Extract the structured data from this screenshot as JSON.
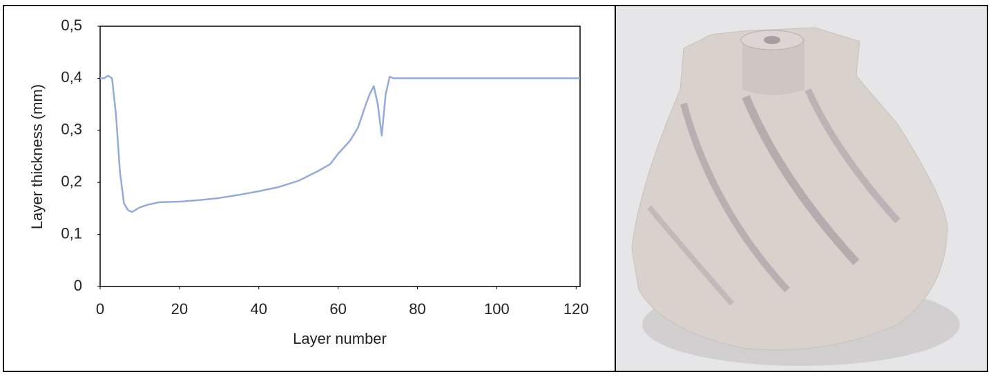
{
  "chart_data": {
    "type": "line",
    "x_label": "Layer number",
    "y_label": "Layer thickness (mm)",
    "x": [
      0,
      1,
      2,
      3,
      4,
      5,
      6,
      7,
      8,
      10,
      12,
      15,
      20,
      25,
      30,
      35,
      40,
      45,
      50,
      55,
      58,
      60,
      63,
      65,
      67,
      68,
      69,
      70,
      71,
      72,
      73,
      74,
      80,
      100,
      121
    ],
    "series": [
      {
        "name": "Layer thickness",
        "color": "#94aadb",
        "values": [
          0.4,
          0.4,
          0.405,
          0.4,
          0.33,
          0.22,
          0.16,
          0.147,
          0.143,
          0.152,
          0.157,
          0.162,
          0.163,
          0.166,
          0.17,
          0.176,
          0.183,
          0.191,
          0.203,
          0.222,
          0.235,
          0.255,
          0.28,
          0.305,
          0.35,
          0.37,
          0.385,
          0.35,
          0.29,
          0.37,
          0.403,
          0.4,
          0.4,
          0.4,
          0.4
        ]
      }
    ],
    "xlim": [
      0,
      121
    ],
    "xticks": [
      0,
      20,
      40,
      60,
      80,
      100,
      120
    ],
    "ylim": [
      0,
      0.5
    ],
    "yticks": [
      0,
      {
        "value": 0.1,
        "label": "0,1"
      },
      {
        "value": 0.2,
        "label": "0,2"
      },
      {
        "value": 0.3,
        "label": "0,3"
      },
      {
        "value": 0.4,
        "label": "0,4"
      },
      {
        "value": 0.5,
        "label": "0,5"
      }
    ],
    "grid": false
  }
}
